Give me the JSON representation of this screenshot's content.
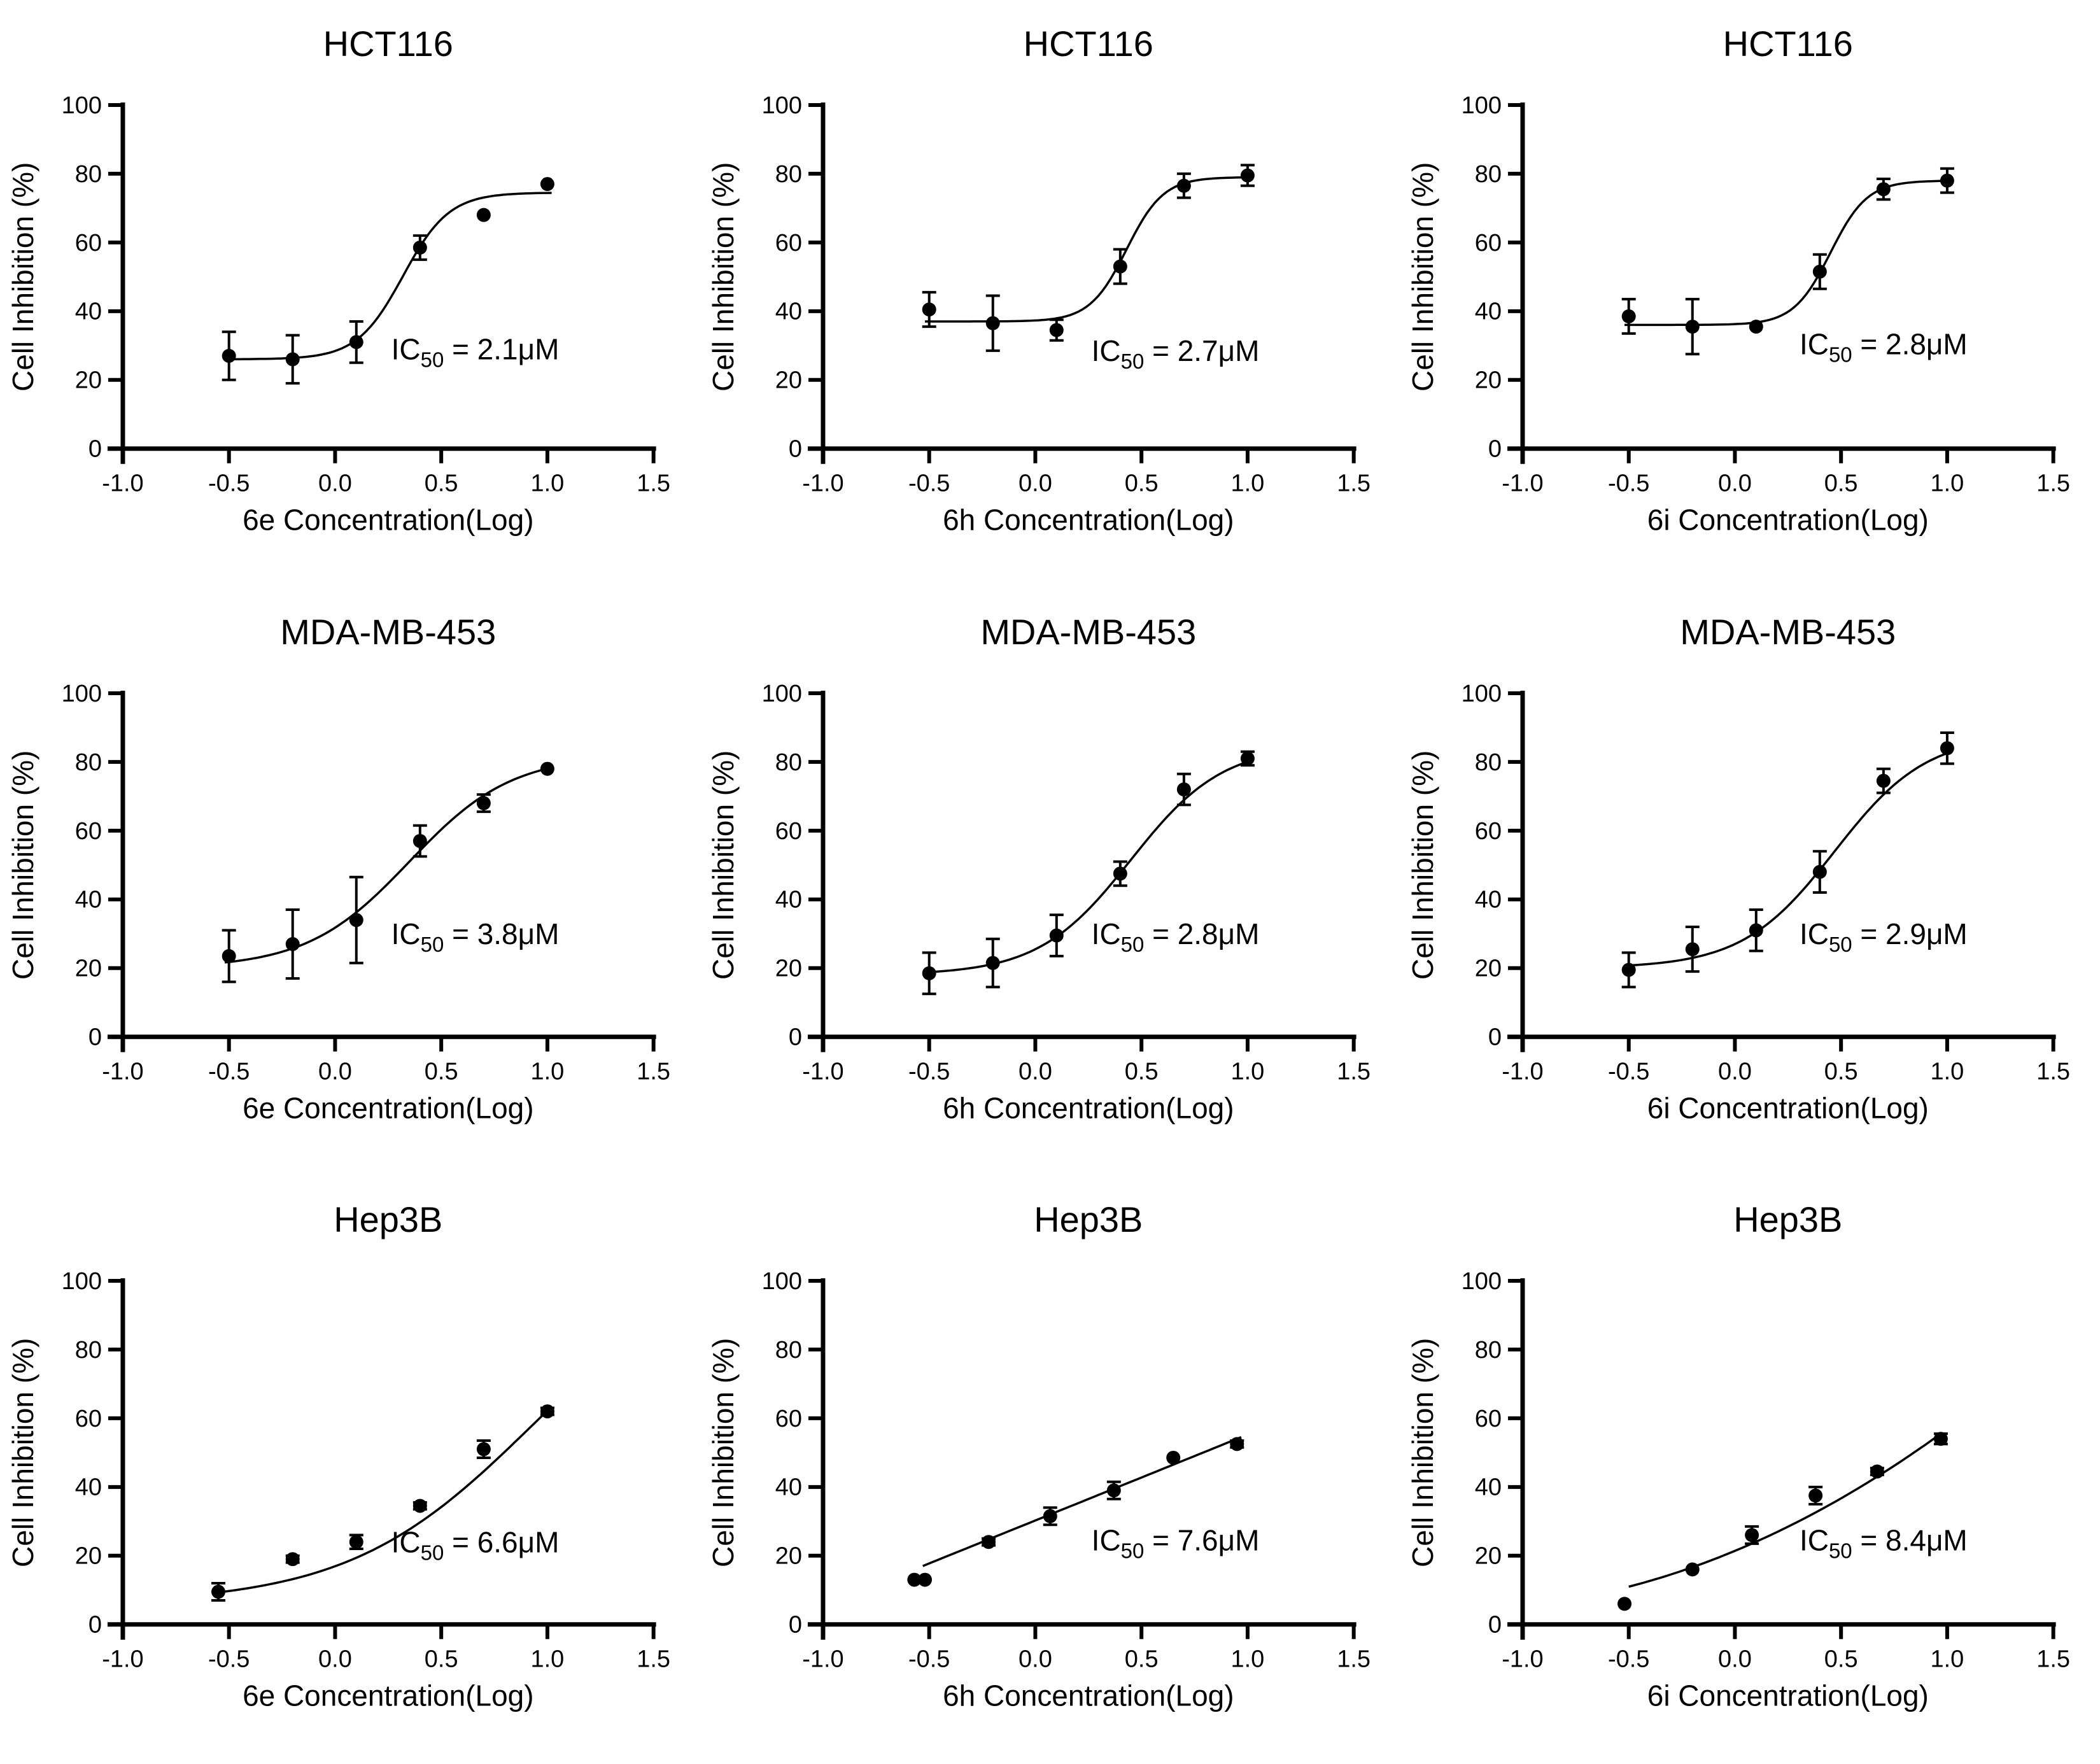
{
  "colors": {
    "ink": "#000000",
    "background": "#ffffff"
  },
  "chart_data": [
    {
      "type": "scatter",
      "title": "HCT116",
      "xlabel": "6e Concentration(Log)",
      "ylabel": "Cell Inhibition (%)",
      "xlim": [
        -1.0,
        1.5
      ],
      "ylim": [
        0,
        100
      ],
      "xticks": [
        "-1.0",
        "-0.5",
        "0.0",
        "0.5",
        "1.0",
        "1.5"
      ],
      "yticks": [
        "0",
        "20",
        "40",
        "60",
        "80",
        "100"
      ],
      "x": [
        -0.5,
        -0.2,
        0.1,
        0.4,
        0.7,
        1.0
      ],
      "y": [
        27,
        26,
        31,
        58.5,
        68,
        77
      ],
      "err": [
        7,
        7,
        6,
        3.5,
        0,
        0
      ],
      "fit": {
        "kind": "logistic",
        "bottom": 26,
        "top": 74.5,
        "x0": 0.32,
        "hill": 4,
        "range": [
          -0.5,
          1.02
        ]
      },
      "annotation": {
        "prefix": "IC",
        "sub": "50",
        "rest": " = 2.1μM",
        "x": 0.66,
        "y": 26
      }
    },
    {
      "type": "scatter",
      "title": "HCT116",
      "xlabel": "6h Concentration(Log)",
      "ylabel": "Cell Inhibition (%)",
      "xlim": [
        -1.0,
        1.5
      ],
      "ylim": [
        0,
        100
      ],
      "xticks": [
        "-1.0",
        "-0.5",
        "0.0",
        "0.5",
        "1.0",
        "1.5"
      ],
      "yticks": [
        "0",
        "20",
        "40",
        "60",
        "80",
        "100"
      ],
      "x": [
        -0.5,
        -0.2,
        0.1,
        0.4,
        0.7,
        1.0
      ],
      "y": [
        40.5,
        36.5,
        34.5,
        53,
        76.5,
        79.5
      ],
      "err": [
        5,
        8,
        3,
        5,
        3.5,
        3
      ],
      "fit": {
        "kind": "logistic",
        "bottom": 37,
        "top": 79,
        "x0": 0.43,
        "hill": 5,
        "range": [
          -0.52,
          1.0
        ]
      },
      "annotation": {
        "prefix": "IC",
        "sub": "50",
        "rest": " = 2.7μM",
        "x": 0.66,
        "y": 25.5
      }
    },
    {
      "type": "scatter",
      "title": "HCT116",
      "xlabel": "6i Concentration(Log)",
      "ylabel": "Cell Inhibition (%)",
      "xlim": [
        -1.0,
        1.5
      ],
      "ylim": [
        0,
        100
      ],
      "xticks": [
        "-1.0",
        "-0.5",
        "0.0",
        "0.5",
        "1.0",
        "1.5"
      ],
      "yticks": [
        "0",
        "20",
        "40",
        "60",
        "80",
        "100"
      ],
      "x": [
        -0.5,
        -0.2,
        0.1,
        0.4,
        0.7,
        1.0
      ],
      "y": [
        38.5,
        35.5,
        35.5,
        51.5,
        75.5,
        78
      ],
      "err": [
        5,
        8,
        0,
        5,
        3,
        3.5
      ],
      "fit": {
        "kind": "logistic",
        "bottom": 36,
        "top": 78,
        "x0": 0.45,
        "hill": 5,
        "range": [
          -0.52,
          1.0
        ]
      },
      "annotation": {
        "prefix": "IC",
        "sub": "50",
        "rest": " = 2.8μM",
        "x": 0.7,
        "y": 27.5
      }
    },
    {
      "type": "scatter",
      "title": "MDA-MB-453",
      "xlabel": "6e Concentration(Log)",
      "ylabel": "Cell Inhibition (%)",
      "xlim": [
        -1.0,
        1.5
      ],
      "ylim": [
        0,
        100
      ],
      "xticks": [
        "-1.0",
        "-0.5",
        "0.0",
        "0.5",
        "1.0",
        "1.5"
      ],
      "yticks": [
        "0",
        "20",
        "40",
        "60",
        "80",
        "100"
      ],
      "x": [
        -0.5,
        -0.2,
        0.1,
        0.4,
        0.7,
        1.0
      ],
      "y": [
        23.5,
        27,
        34,
        57,
        68,
        78
      ],
      "err": [
        7.5,
        10,
        12.5,
        4.5,
        2.5,
        0
      ],
      "fit": {
        "kind": "logistic",
        "bottom": 20,
        "top": 82,
        "x0": 0.35,
        "hill": 1.8,
        "range": [
          -0.52,
          1.0
        ]
      },
      "annotation": {
        "prefix": "IC",
        "sub": "50",
        "rest": " = 3.8μM",
        "x": 0.66,
        "y": 27
      }
    },
    {
      "type": "scatter",
      "title": "MDA-MB-453",
      "xlabel": "6h Concentration(Log)",
      "ylabel": "Cell Inhibition (%)",
      "xlim": [
        -1.0,
        1.5
      ],
      "ylim": [
        0,
        100
      ],
      "xticks": [
        "-1.0",
        "-0.5",
        "0.0",
        "0.5",
        "1.0",
        "1.5"
      ],
      "yticks": [
        "0",
        "20",
        "40",
        "60",
        "80",
        "100"
      ],
      "x": [
        -0.5,
        -0.2,
        0.1,
        0.4,
        0.7,
        1.0
      ],
      "y": [
        18.5,
        21.5,
        29.5,
        47.5,
        72,
        81
      ],
      "err": [
        6,
        7,
        6,
        3.5,
        4.5,
        2
      ],
      "fit": {
        "kind": "logistic",
        "bottom": 18,
        "top": 85,
        "x0": 0.45,
        "hill": 2,
        "range": [
          -0.52,
          1.0
        ]
      },
      "annotation": {
        "prefix": "IC",
        "sub": "50",
        "rest": " = 2.8μM",
        "x": 0.66,
        "y": 27
      }
    },
    {
      "type": "scatter",
      "title": "MDA-MB-453",
      "xlabel": "6i Concentration(Log)",
      "ylabel": "Cell Inhibition (%)",
      "xlim": [
        -1.0,
        1.5
      ],
      "ylim": [
        0,
        100
      ],
      "xticks": [
        "-1.0",
        "-0.5",
        "0.0",
        "0.5",
        "1.0",
        "1.5"
      ],
      "yticks": [
        "0",
        "20",
        "40",
        "60",
        "80",
        "100"
      ],
      "x": [
        -0.5,
        -0.2,
        0.1,
        0.4,
        0.7,
        1.0
      ],
      "y": [
        19.5,
        25.5,
        31,
        48,
        74.5,
        84
      ],
      "err": [
        5,
        6.5,
        6,
        6,
        3.5,
        4.5
      ],
      "fit": {
        "kind": "logistic",
        "bottom": 20,
        "top": 88,
        "x0": 0.47,
        "hill": 2,
        "range": [
          -0.52,
          1.0
        ]
      },
      "annotation": {
        "prefix": "IC",
        "sub": "50",
        "rest": " = 2.9μM",
        "x": 0.7,
        "y": 27
      }
    },
    {
      "type": "scatter",
      "title": "Hep3B",
      "xlabel": "6e Concentration(Log)",
      "ylabel": "Cell Inhibition (%)",
      "xlim": [
        -1.0,
        1.5
      ],
      "ylim": [
        0,
        100
      ],
      "xticks": [
        "-1.0",
        "-0.5",
        "0.0",
        "0.5",
        "1.0",
        "1.5"
      ],
      "yticks": [
        "0",
        "20",
        "40",
        "60",
        "80",
        "100"
      ],
      "x": [
        -0.55,
        -0.2,
        0.1,
        0.4,
        0.7,
        1.0
      ],
      "y": [
        9.5,
        19,
        24,
        34.5,
        51,
        62
      ],
      "err": [
        2.5,
        1,
        2,
        1,
        2.5,
        1
      ],
      "fit": {
        "kind": "logistic",
        "bottom": 6,
        "top": 110,
        "x0": 0.93,
        "hill": 1,
        "range": [
          -0.55,
          1.02
        ]
      },
      "annotation": {
        "prefix": "IC",
        "sub": "50",
        "rest": " = 6.6μM",
        "x": 0.66,
        "y": 21
      }
    },
    {
      "type": "scatter",
      "title": "Hep3B",
      "xlabel": "6h Concentration(Log)",
      "ylabel": "Cell Inhibition (%)",
      "xlim": [
        -1.0,
        1.5
      ],
      "ylim": [
        0,
        100
      ],
      "xticks": [
        "-1.0",
        "-0.5",
        "0.0",
        "0.5",
        "1.0",
        "1.5"
      ],
      "yticks": [
        "0",
        "20",
        "40",
        "60",
        "80",
        "100"
      ],
      "x": [
        -0.57,
        -0.52,
        -0.22,
        0.07,
        0.37,
        0.65,
        0.95
      ],
      "y": [
        13,
        13,
        24,
        31.5,
        39,
        48.5,
        52.5
      ],
      "err": [
        0,
        0,
        1,
        2.5,
        2.5,
        0,
        1
      ],
      "fit": {
        "kind": "linear",
        "x1": -0.53,
        "y1": 17,
        "x2": 0.97,
        "y2": 54.5,
        "range": [
          -0.53,
          0.97
        ]
      },
      "annotation": {
        "prefix": "IC",
        "sub": "50",
        "rest": " = 7.6μM",
        "x": 0.66,
        "y": 21.5
      }
    },
    {
      "type": "scatter",
      "title": "Hep3B",
      "xlabel": "6i Concentration(Log)",
      "ylabel": "Cell Inhibition (%)",
      "xlim": [
        -1.0,
        1.5
      ],
      "ylim": [
        0,
        100
      ],
      "xticks": [
        "-1.0",
        "-0.5",
        "0.0",
        "0.5",
        "1.0",
        "1.5"
      ],
      "yticks": [
        "0",
        "20",
        "40",
        "60",
        "80",
        "100"
      ],
      "x": [
        -0.52,
        -0.2,
        0.08,
        0.38,
        0.67,
        0.97
      ],
      "y": [
        6,
        16,
        26,
        37.5,
        44.5,
        54
      ],
      "err": [
        0,
        0,
        2.5,
        2.5,
        1,
        1.5
      ],
      "fit": {
        "kind": "poly2",
        "a": 21.4,
        "b": 25.7,
        "c": 9.74,
        "range": [
          -0.5,
          0.97
        ]
      },
      "annotation": {
        "prefix": "IC",
        "sub": "50",
        "rest": " = 8.4μM",
        "x": 0.7,
        "y": 21.5
      }
    }
  ]
}
